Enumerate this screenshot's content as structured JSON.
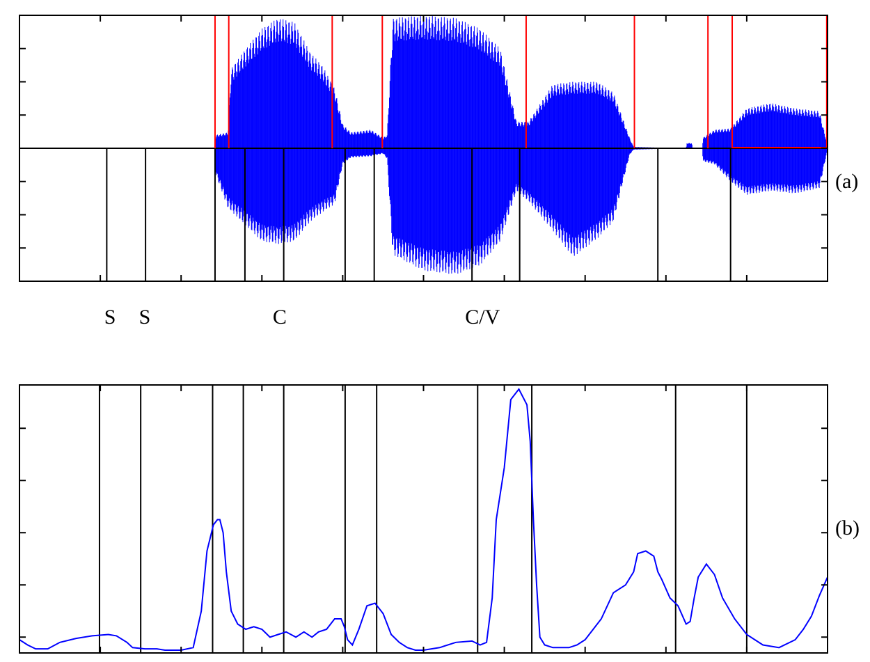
{
  "colors": {
    "waveform": "#0000ff",
    "curve": "#0000ff",
    "segment_lines": "#ff0000",
    "boundary_lines": "#000000",
    "axes": "#000000",
    "background": "#ffffff"
  },
  "chart_data": [
    {
      "type": "line",
      "panel_label": "(a)",
      "title": "",
      "xlabel": "",
      "ylabel": "",
      "xlim": [
        0,
        1000
      ],
      "ylim": [
        -1,
        1
      ],
      "grid": false,
      "legend": null,
      "xticks": [
        0,
        100,
        200,
        300,
        400,
        500,
        600,
        700,
        800,
        900,
        1000
      ],
      "yticks": [
        -0.75,
        -0.5,
        -0.25,
        0,
        0.25,
        0.5,
        0.75
      ],
      "tick_labels_shown": false,
      "series": [
        {
          "kind": "waveform_envelope",
          "envelope_points": [
            [
              0,
              0
            ],
            [
              242,
              0
            ],
            [
              243,
              0.1
            ],
            [
              258,
              0.12
            ],
            [
              262,
              0.6
            ],
            [
              280,
              0.75
            ],
            [
              300,
              0.9
            ],
            [
              320,
              0.98
            ],
            [
              340,
              0.95
            ],
            [
              360,
              0.72
            ],
            [
              375,
              0.62
            ],
            [
              390,
              0.45
            ],
            [
              400,
              0.18
            ],
            [
              410,
              0.12
            ],
            [
              435,
              0.14
            ],
            [
              450,
              0.08
            ],
            [
              455,
              0.1
            ],
            [
              462,
              0.98
            ],
            [
              500,
              1.0
            ],
            [
              540,
              0.98
            ],
            [
              570,
              0.9
            ],
            [
              595,
              0.75
            ],
            [
              615,
              0.2
            ],
            [
              630,
              0.2
            ],
            [
              660,
              0.48
            ],
            [
              685,
              0.5
            ],
            [
              715,
              0.5
            ],
            [
              735,
              0.42
            ],
            [
              755,
              0.08
            ],
            [
              760,
              0.01
            ],
            [
              825,
              0
            ],
            [
              826,
              0.04
            ],
            [
              832,
              0.04
            ],
            [
              833,
              0
            ],
            [
              845,
              0
            ],
            [
              846,
              0.08
            ],
            [
              860,
              0.14
            ],
            [
              880,
              0.15
            ],
            [
              900,
              0.3
            ],
            [
              930,
              0.34
            ],
            [
              960,
              0.3
            ],
            [
              990,
              0.28
            ],
            [
              1000,
              0.02
            ]
          ],
          "envelope_negative_points": [
            [
              0,
              0
            ],
            [
              242,
              0
            ],
            [
              243,
              -0.2
            ],
            [
              258,
              -0.45
            ],
            [
              280,
              -0.58
            ],
            [
              300,
              -0.7
            ],
            [
              320,
              -0.72
            ],
            [
              340,
              -0.7
            ],
            [
              360,
              -0.55
            ],
            [
              375,
              -0.48
            ],
            [
              390,
              -0.42
            ],
            [
              400,
              -0.12
            ],
            [
              410,
              -0.07
            ],
            [
              435,
              -0.06
            ],
            [
              450,
              -0.04
            ],
            [
              455,
              -0.08
            ],
            [
              462,
              -0.8
            ],
            [
              500,
              -0.92
            ],
            [
              540,
              -0.95
            ],
            [
              570,
              -0.88
            ],
            [
              595,
              -0.7
            ],
            [
              615,
              -0.32
            ],
            [
              630,
              -0.4
            ],
            [
              660,
              -0.62
            ],
            [
              685,
              -0.82
            ],
            [
              715,
              -0.68
            ],
            [
              735,
              -0.55
            ],
            [
              755,
              -0.05
            ],
            [
              760,
              -0.01
            ],
            [
              825,
              0
            ],
            [
              845,
              0
            ],
            [
              846,
              -0.1
            ],
            [
              860,
              -0.12
            ],
            [
              880,
              -0.25
            ],
            [
              900,
              -0.35
            ],
            [
              930,
              -0.32
            ],
            [
              960,
              -0.34
            ],
            [
              990,
              -0.3
            ],
            [
              1000,
              -0.01
            ]
          ]
        }
      ],
      "segment_lines_red": [
        242,
        259,
        387,
        449,
        627,
        761,
        852,
        882,
        999
      ],
      "segment_baseline_red": [
        [
          882,
          999
        ]
      ],
      "boundary_lines_black": [
        108,
        156,
        242,
        279,
        327,
        403,
        439,
        560,
        619,
        790,
        880
      ],
      "boundary_labels": [
        {
          "text": "S",
          "x": 112
        },
        {
          "text": "S",
          "x": 155
        },
        {
          "text": "C",
          "x": 322
        },
        {
          "text": "C/V",
          "x": 573
        }
      ]
    },
    {
      "type": "line",
      "panel_label": "(b)",
      "title": "",
      "xlabel": "",
      "ylabel": "",
      "xlim": [
        0,
        1000
      ],
      "ylim": [
        0,
        1
      ],
      "grid": false,
      "legend": null,
      "xticks": [
        0,
        100,
        200,
        300,
        400,
        500,
        600,
        700,
        800,
        900,
        1000
      ],
      "yticks": [
        0.05,
        0.25,
        0.45,
        0.65,
        0.85
      ],
      "tick_labels_shown": false,
      "series": [
        {
          "x": [
            0,
            10,
            20,
            35,
            50,
            70,
            90,
            110,
            120,
            133,
            140,
            155,
            170,
            180,
            190,
            200,
            215,
            225,
            232,
            240,
            245,
            248,
            252,
            256,
            262,
            270,
            280,
            290,
            300,
            310,
            320,
            330,
            342,
            352,
            362,
            370,
            380,
            390,
            398,
            402,
            406,
            412,
            420,
            430,
            440,
            450,
            460,
            470,
            480,
            490,
            500,
            520,
            540,
            560,
            570,
            578,
            585,
            590,
            600,
            608,
            618,
            628,
            632,
            636,
            640,
            644,
            650,
            660,
            670,
            680,
            690,
            700,
            710,
            720,
            735,
            750,
            760,
            765,
            775,
            785,
            790,
            795,
            805,
            815,
            825,
            830,
            835,
            840,
            850,
            860,
            870,
            885,
            900,
            920,
            940,
            960,
            970,
            980,
            990,
            1000
          ],
          "y": [
            0.04,
            0.02,
            0.005,
            0.005,
            0.03,
            0.045,
            0.055,
            0.06,
            0.055,
            0.03,
            0.01,
            0.005,
            0.005,
            0.0,
            0.0,
            0.0,
            0.01,
            0.15,
            0.38,
            0.48,
            0.5,
            0.5,
            0.45,
            0.3,
            0.15,
            0.1,
            0.08,
            0.09,
            0.08,
            0.05,
            0.06,
            0.07,
            0.05,
            0.07,
            0.05,
            0.07,
            0.08,
            0.12,
            0.12,
            0.09,
            0.04,
            0.02,
            0.08,
            0.17,
            0.18,
            0.14,
            0.06,
            0.03,
            0.01,
            0.0,
            0.0,
            0.01,
            0.03,
            0.035,
            0.02,
            0.03,
            0.2,
            0.5,
            0.7,
            0.96,
            1.0,
            0.94,
            0.8,
            0.5,
            0.25,
            0.05,
            0.02,
            0.01,
            0.01,
            0.01,
            0.02,
            0.04,
            0.08,
            0.12,
            0.22,
            0.25,
            0.3,
            0.37,
            0.38,
            0.36,
            0.3,
            0.27,
            0.2,
            0.17,
            0.1,
            0.11,
            0.2,
            0.28,
            0.33,
            0.29,
            0.2,
            0.12,
            0.06,
            0.02,
            0.01,
            0.04,
            0.08,
            0.13,
            0.21,
            0.28
          ]
        }
      ],
      "boundary_lines_black": [
        99,
        150,
        239,
        277,
        327,
        403,
        442,
        567,
        634,
        812,
        900
      ]
    }
  ]
}
